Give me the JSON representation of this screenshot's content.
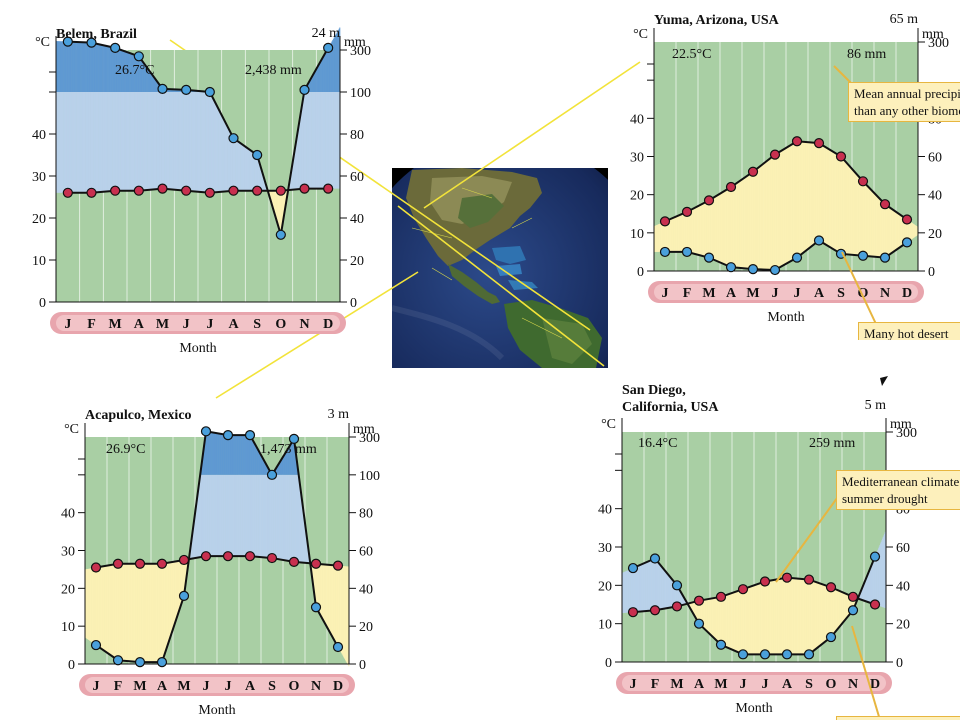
{
  "chart_data": [
    {
      "type": "line",
      "id": "belem",
      "station": "Belem, Brazil",
      "elevation": "24 m",
      "mean_temp": "26.7°C",
      "annual_precip": "2,438 mm",
      "xlabel": "Month",
      "y_left_unit": "°C",
      "y_right_unit": "mm",
      "categories": [
        "J",
        "F",
        "M",
        "A",
        "M",
        "J",
        "J",
        "A",
        "S",
        "O",
        "N",
        "D"
      ],
      "series": [
        {
          "values": [
            26,
            26,
            26.5,
            26.5,
            27,
            26.5,
            26,
            26.5,
            26.5,
            26.5,
            27,
            27
          ]
        },
        {
          "values": [
            340,
            335,
            310,
            270,
            115,
            110,
            100,
            78,
            70,
            32,
            110,
            310
          ]
        }
      ],
      "y_left_ticks": [
        0,
        10,
        20,
        30,
        40
      ],
      "y_right_ticks": [
        0,
        20,
        40,
        60,
        80,
        100,
        300
      ],
      "colors": {
        "temperature": "#c8304f",
        "precipitation": "#3f8ed0",
        "surplus": "#b9d1ea",
        "very_wet": "#5a97d2",
        "background": "#a9cfa4"
      }
    },
    {
      "type": "line",
      "id": "yuma",
      "station": "Yuma, Arizona, USA",
      "elevation": "65 m",
      "mean_temp": "22.5°C",
      "annual_precip": "86 mm",
      "xlabel": "Month",
      "y_left_unit": "°C",
      "y_right_unit": "mm",
      "categories": [
        "J",
        "F",
        "M",
        "A",
        "M",
        "J",
        "J",
        "A",
        "S",
        "O",
        "N",
        "D"
      ],
      "series": [
        {
          "values": [
            13,
            15.5,
            18.5,
            22,
            26,
            30.5,
            34,
            33.5,
            30,
            23.5,
            17.5,
            13.5
          ]
        },
        {
          "values": [
            10,
            10,
            7,
            2,
            1,
            0.5,
            7,
            16,
            9,
            8,
            7,
            15
          ]
        }
      ],
      "y_left_ticks": [
        0,
        10,
        20,
        30,
        40
      ],
      "y_right_ticks": [
        0,
        20,
        40,
        60,
        80,
        300
      ],
      "colors": {
        "deficit": "#fbf1b5",
        "background": "#a9cfa4"
      }
    },
    {
      "type": "line",
      "id": "acapulco",
      "station": "Acapulco, Mexico",
      "elevation": "3 m",
      "mean_temp": "26.9°C",
      "annual_precip": "1,473 mm",
      "xlabel": "Month",
      "y_left_unit": "°C",
      "y_right_unit": "mm",
      "categories": [
        "J",
        "F",
        "M",
        "A",
        "M",
        "J",
        "J",
        "A",
        "S",
        "O",
        "N",
        "D"
      ],
      "series": [
        {
          "values": [
            25.5,
            26.5,
            26.5,
            26.5,
            27.5,
            28.5,
            28.5,
            28.5,
            28,
            27,
            26.5,
            26
          ]
        },
        {
          "values": [
            10,
            2,
            1,
            1,
            36,
            330,
            310,
            310,
            100,
            290,
            30,
            9
          ]
        }
      ],
      "y_left_ticks": [
        0,
        10,
        20,
        30,
        40
      ],
      "y_right_ticks": [
        0,
        20,
        40,
        60,
        80,
        100,
        300
      ],
      "colors": {
        "background": "#a9cfa4"
      }
    },
    {
      "type": "line",
      "id": "sandiego",
      "station": "San Diego,\nCalifornia, USA",
      "elevation": "5 m",
      "mean_temp": "16.4°C",
      "annual_precip": "259 mm",
      "xlabel": "Month",
      "y_left_unit": "°C",
      "y_right_unit": "mm",
      "categories": [
        "J",
        "F",
        "M",
        "A",
        "M",
        "J",
        "J",
        "A",
        "S",
        "O",
        "N",
        "D"
      ],
      "series": [
        {
          "values": [
            13,
            13.5,
            14.5,
            16,
            17,
            19,
            21,
            22,
            21.5,
            19.5,
            17,
            15
          ]
        },
        {
          "values": [
            49,
            54,
            40,
            20,
            9,
            4,
            4,
            4,
            4,
            13,
            27,
            55
          ]
        }
      ],
      "y_left_ticks": [
        0,
        10,
        20,
        30,
        40
      ],
      "y_right_ticks": [
        0,
        20,
        40,
        60,
        80,
        300
      ],
      "colors": {
        "background": "#a9cfa4"
      }
    }
  ],
  "callouts": {
    "yuma_top": "Mean annual precipitation is lower\nthan any other biome",
    "yuma_bottom": "Many hot desert",
    "sandiego_top": "Mediterranean climate\nsummer drought",
    "sandiego_bottom": ""
  },
  "map": {
    "icon": "earth-globe-americas"
  }
}
